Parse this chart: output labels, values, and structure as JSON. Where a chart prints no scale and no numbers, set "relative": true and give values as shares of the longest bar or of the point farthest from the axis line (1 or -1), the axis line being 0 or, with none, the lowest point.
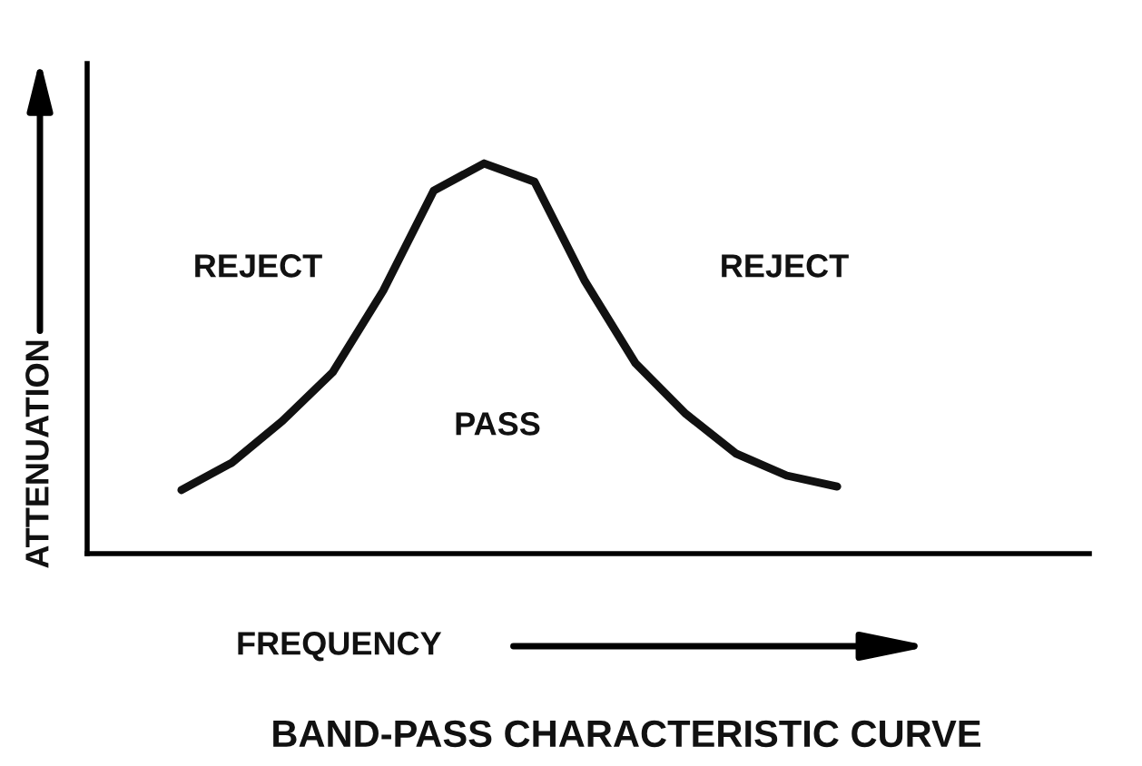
{
  "chart_data": {
    "type": "line",
    "relative": true,
    "title": "BAND-PASS CHARACTERISTIC CURVE",
    "xlabel": "FREQUENCY",
    "ylabel": "ATTENUATION",
    "categories": [
      null,
      null,
      null,
      null,
      null,
      null,
      null,
      null,
      null,
      null,
      null,
      null,
      null,
      null
    ],
    "series": [
      {
        "color": "#111111",
        "values": [
          0.163,
          0.233,
          0.34,
          0.465,
          0.674,
          0.93,
          1,
          0.953,
          0.698,
          0.488,
          0.358,
          0.256,
          0.2,
          0.172
        ]
      }
    ],
    "annotations": [
      "REJECT",
      "PASS",
      "REJECT"
    ],
    "marker": "none",
    "line_style": "solid"
  }
}
